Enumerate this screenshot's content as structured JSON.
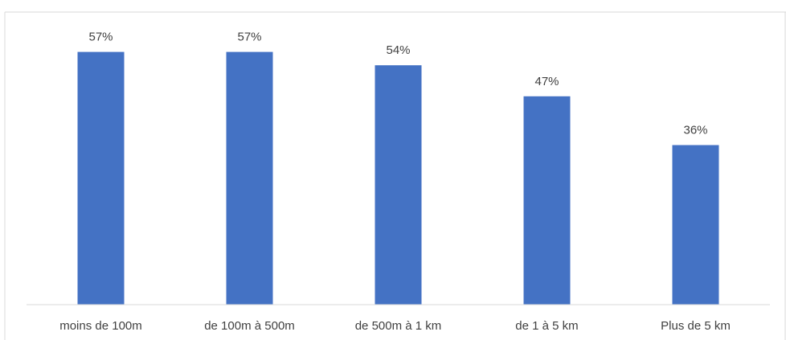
{
  "chart_data": {
    "type": "bar",
    "categories": [
      "moins de 100m",
      "de 100m à 500m",
      "de 500m à 1 km",
      "de 1 à 5 km",
      "Plus de 5 km"
    ],
    "values": [
      57,
      57,
      54,
      47,
      36
    ],
    "value_labels": [
      "57%",
      "57%",
      "54%",
      "47%",
      "36%"
    ],
    "title": "",
    "xlabel": "",
    "ylabel": "",
    "ylim": [
      0,
      66
    ],
    "grid": false,
    "legend": "none",
    "bar_color": "#4472C4"
  }
}
